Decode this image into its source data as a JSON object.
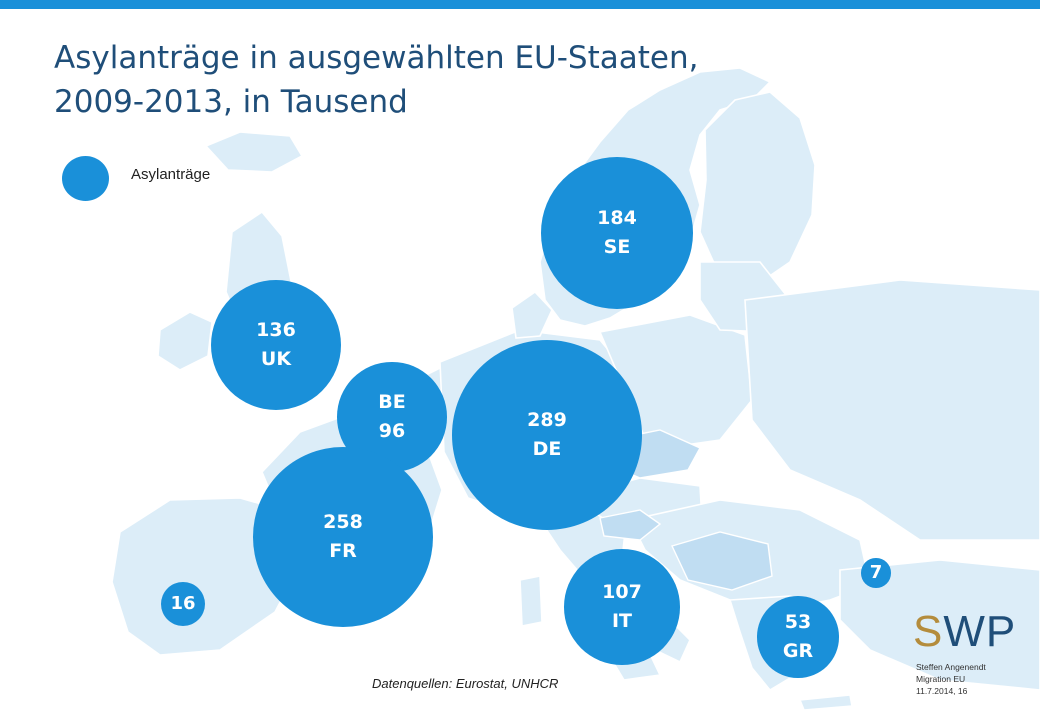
{
  "title_line1": "Asylanträge in ausgewählten EU-Staaten,",
  "title_line2": "2009-2013, in Tausend",
  "legend_label": "Asylanträge",
  "source": "Datenquellen: Eurostat, UNHCR",
  "logo": {
    "s": "S",
    "wp": "WP"
  },
  "credit": [
    "Steffen Angenendt",
    "Migration EU",
    "11.7.2014, 16"
  ],
  "colors": {
    "bubble": "#1a90d9",
    "title": "#1f4e79",
    "map_land": "#dcedf8",
    "map_highlight": "#c0ddf2",
    "top_bar": "#1a90d9"
  },
  "chart_data": {
    "type": "bubble-map",
    "title": "Asylanträge in ausgewählten EU-Staaten, 2009-2013, in Tausend",
    "unit": "Tausend",
    "series": [
      {
        "name": "Asylanträge"
      }
    ],
    "points": [
      {
        "country": "SE",
        "value": 184,
        "label_value": "184",
        "order": "value-first"
      },
      {
        "country": "UK",
        "value": 136,
        "label_value": "136",
        "order": "value-first"
      },
      {
        "country": "BE",
        "value": 96,
        "label_value": "96",
        "order": "country-first"
      },
      {
        "country": "DE",
        "value": 289,
        "label_value": "289",
        "order": "value-first"
      },
      {
        "country": "FR",
        "value": 258,
        "label_value": "258",
        "order": "value-first"
      },
      {
        "country": "IT",
        "value": 107,
        "label_value": "107",
        "order": "value-first"
      },
      {
        "country": "GR",
        "value": 53,
        "label_value": "53",
        "order": "value-first"
      },
      {
        "country": "",
        "value": 16,
        "label_value": "16",
        "order": "value-only"
      },
      {
        "country": "",
        "value": 7,
        "label_value": "7",
        "order": "value-only"
      }
    ]
  }
}
